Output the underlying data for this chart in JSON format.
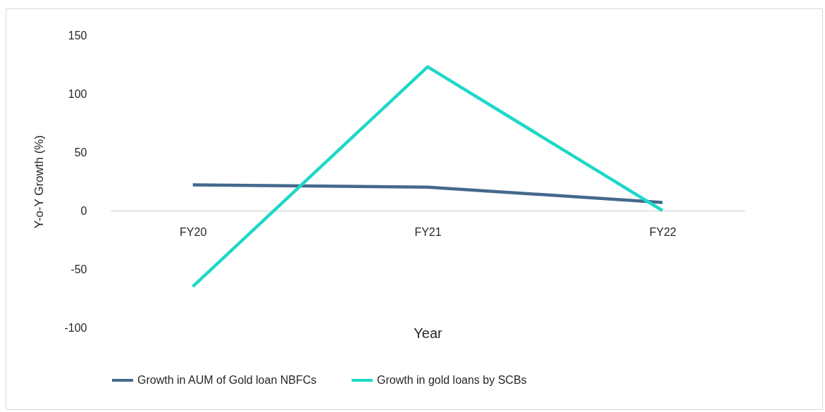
{
  "chart_data": {
    "type": "line",
    "xlabel": "Year",
    "ylabel": "Y-o-Y Growth (%)",
    "categories": [
      "FY20",
      "FY21",
      "FY22"
    ],
    "series": [
      {
        "name": "Growth in AUM of Gold loan NBFCs",
        "color": "#44698c",
        "values": [
          22,
          20,
          7
        ]
      },
      {
        "name": "Growth in gold loans by SCBs",
        "color": "#1ed8c8",
        "values": [
          -65,
          123,
          0
        ]
      }
    ],
    "ylim": [
      -100,
      150
    ],
    "yticks": [
      -100,
      -50,
      0,
      50,
      100,
      150
    ],
    "grid": false,
    "legend": "bottom",
    "marker": "none",
    "line_style": "solid"
  }
}
